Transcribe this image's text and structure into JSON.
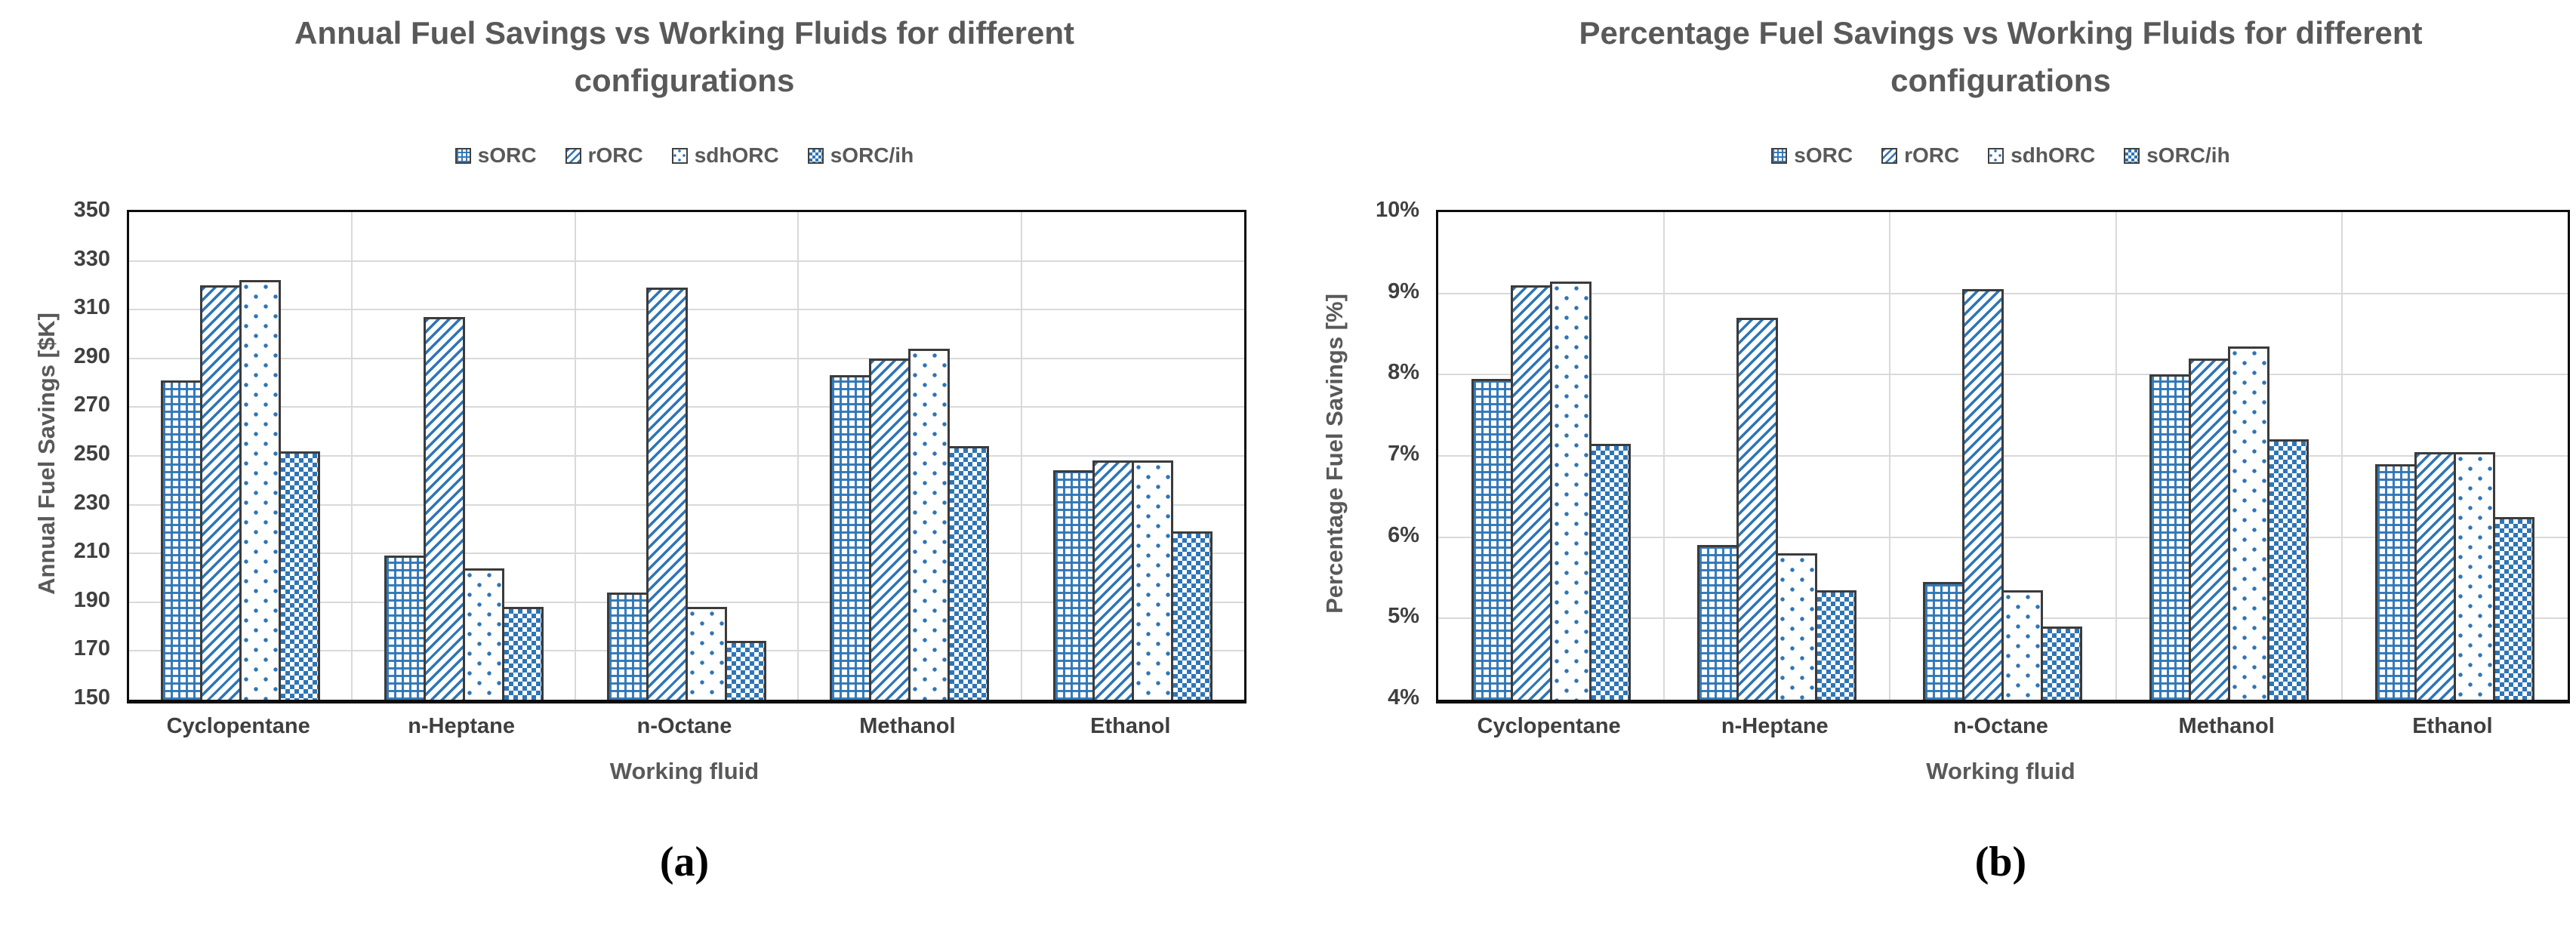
{
  "chart_data": [
    {
      "type": "bar",
      "caption": "(a)",
      "title": "Annual Fuel Savings vs Working Fluids for different configurations",
      "xlabel": "Working fluid",
      "ylabel": "Annual Fuel Savings [$K]",
      "ylim": [
        150,
        350
      ],
      "ytick_labels": [
        "350",
        "330",
        "310",
        "290",
        "270",
        "250",
        "230",
        "210",
        "190",
        "170",
        "150"
      ],
      "grid": true,
      "legend_position": "top",
      "categories": [
        "Cyclopentane",
        "n-Heptane",
        "n-Octane",
        "Methanol",
        "Ethanol"
      ],
      "series": [
        {
          "name": "sORC",
          "pattern": "grid-hatch",
          "values": [
            281,
            209,
            194,
            283,
            244
          ]
        },
        {
          "name": "rORC",
          "pattern": "diagonal-hatch",
          "values": [
            320,
            307,
            319,
            290,
            248
          ]
        },
        {
          "name": "sdhORC",
          "pattern": "dot-hatch",
          "values": [
            322,
            204,
            188,
            294,
            248
          ]
        },
        {
          "name": "sORC/ih",
          "pattern": "check-hatch",
          "values": [
            252,
            188,
            174,
            254,
            219
          ]
        }
      ]
    },
    {
      "type": "bar",
      "caption": "(b)",
      "title": "Percentage Fuel Savings vs Working Fluids for different configurations",
      "xlabel": "Working fluid",
      "ylabel": "Percentage Fuel Savings [%]",
      "ylim": [
        4,
        10
      ],
      "ytick_labels": [
        "10%",
        "9%",
        "8%",
        "7%",
        "6%",
        "5%",
        "4%"
      ],
      "grid": true,
      "legend_position": "top",
      "categories": [
        "Cyclopentane",
        "n-Heptane",
        "n-Octane",
        "Methanol",
        "Ethanol"
      ],
      "series": [
        {
          "name": "sORC",
          "pattern": "grid-hatch",
          "values": [
            7.95,
            5.9,
            5.45,
            8.0,
            6.9
          ]
        },
        {
          "name": "rORC",
          "pattern": "diagonal-hatch",
          "values": [
            9.1,
            8.7,
            9.05,
            8.2,
            7.05
          ]
        },
        {
          "name": "sdhORC",
          "pattern": "dot-hatch",
          "values": [
            9.15,
            5.8,
            5.35,
            8.35,
            7.05
          ]
        },
        {
          "name": "sORC/ih",
          "pattern": "check-hatch",
          "values": [
            7.15,
            5.35,
            4.9,
            7.2,
            6.25
          ]
        }
      ]
    }
  ],
  "colors": {
    "bar_blue": "#2e75b6",
    "bar_border": "#3b3b3b",
    "plot_border": "#0d0d0d",
    "gridline": "#d9d9d9",
    "title_text": "#595959",
    "tick_text": "#404040"
  }
}
